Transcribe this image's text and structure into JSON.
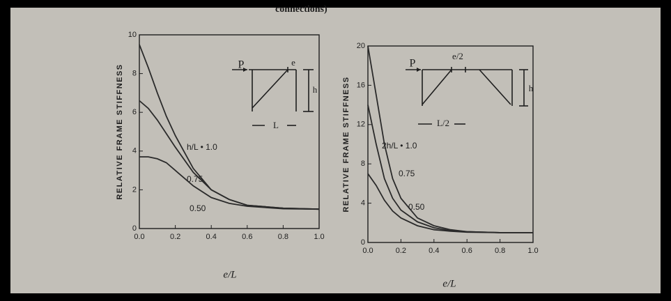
{
  "page_text": "connections)",
  "chart_data": [
    {
      "type": "line",
      "ylabel": "RELATIVE FRAME STIFFNESS",
      "xlabel": "e/L",
      "x": [
        0,
        0.05,
        0.1,
        0.15,
        0.2,
        0.3,
        0.4,
        0.5,
        0.6,
        0.8,
        1.0
      ],
      "series": [
        {
          "name": "h/L • 1.0",
          "color": "#2a2a2a",
          "values": [
            9.5,
            8.3,
            7.0,
            5.8,
            4.8,
            3.1,
            2.0,
            1.5,
            1.2,
            1.05,
            1.0
          ]
        },
        {
          "name": "0.75",
          "color": "#2a2a2a",
          "values": [
            6.6,
            6.2,
            5.6,
            4.9,
            4.2,
            2.9,
            2.0,
            1.5,
            1.2,
            1.05,
            1.0
          ]
        },
        {
          "name": "0.50",
          "color": "#2a2a2a",
          "values": [
            3.7,
            3.7,
            3.6,
            3.4,
            3.0,
            2.2,
            1.6,
            1.3,
            1.15,
            1.02,
            1.0
          ]
        }
      ],
      "xlim": [
        0,
        1.0
      ],
      "ylim": [
        0,
        10
      ],
      "xticks": [
        {
          "value": 0,
          "label": "0.0"
        },
        0.2,
        0.4,
        0.6,
        0.8,
        {
          "value": 1.0,
          "label": "1.0"
        }
      ],
      "yticks": [
        0,
        2,
        4,
        6,
        8,
        10
      ],
      "inset_labels": [
        "P",
        "e",
        "h",
        "L"
      ]
    },
    {
      "type": "line",
      "ylabel": "RELATIVE FRAME STIFFNESS",
      "xlabel": "e/L",
      "x": [
        0,
        0.05,
        0.1,
        0.15,
        0.2,
        0.3,
        0.4,
        0.5,
        0.6,
        0.8,
        1.0
      ],
      "series": [
        {
          "name": "2h/L • 1.0",
          "color": "#2a2a2a",
          "values": [
            20,
            15,
            10,
            6.5,
            4.5,
            2.5,
            1.7,
            1.3,
            1.1,
            1.0,
            1.0
          ]
        },
        {
          "name": "0.75",
          "color": "#2a2a2a",
          "values": [
            14,
            10,
            6.5,
            4.5,
            3.3,
            2.1,
            1.5,
            1.2,
            1.1,
            1.0,
            1.0
          ]
        },
        {
          "name": "0.50",
          "color": "#2a2a2a",
          "values": [
            7,
            5.8,
            4.3,
            3.2,
            2.5,
            1.7,
            1.3,
            1.15,
            1.05,
            1.0,
            1.0
          ]
        }
      ],
      "xlim": [
        0,
        1.0
      ],
      "ylim": [
        0,
        20
      ],
      "xticks": [
        {
          "value": 0,
          "label": "0.0"
        },
        0.2,
        0.4,
        0.6,
        0.8,
        {
          "value": 1.0,
          "label": "1.0"
        }
      ],
      "yticks": [
        0,
        4,
        8,
        12,
        16,
        20
      ],
      "inset_labels": [
        "P",
        "e/2",
        "h",
        "L/2"
      ]
    }
  ]
}
